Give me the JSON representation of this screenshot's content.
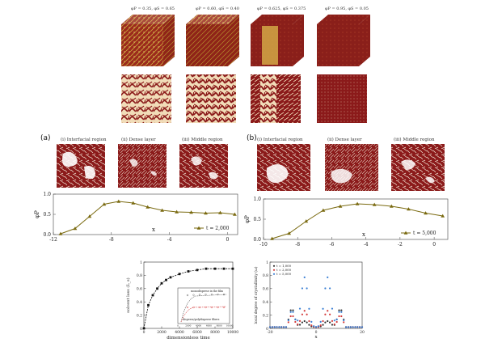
{
  "top_panels": [
    {
      "label": "φP = 0.35, φS = 0.65"
    },
    {
      "label": "φP = 0.60, φS = 0.40"
    },
    {
      "label": "φP = 0.625, φS = 0.375"
    },
    {
      "label": "φP = 0.95, φS = 0.05"
    }
  ],
  "panel_a": {
    "tag": "(a)",
    "regions": [
      "(i) Interfacial region",
      "(ii) Dense layer",
      "(iii) Middle region"
    ],
    "legend": "t = 2,000",
    "xlabel": "x",
    "ylabel": "φP"
  },
  "panel_b": {
    "tag": "(b)",
    "regions": [
      "(i) Interfacial region",
      "(ii) Dense layer",
      "(iii) Middle region"
    ],
    "legend": "t = 5,000",
    "xlabel": "x",
    "ylabel": "φP"
  },
  "colors": {
    "polymer": "#8b1a1a",
    "solvent": "#f1dcb8",
    "curve": "#7a6a10"
  },
  "chart_data": [
    {
      "type": "line",
      "name": "panel (a) profile",
      "x": [
        -11.5,
        -10.5,
        -9.5,
        -8.5,
        -7.5,
        -6.5,
        -5.5,
        -4.5,
        -3.5,
        -2.5,
        -1.5,
        -0.5,
        0.5
      ],
      "y": [
        0.02,
        0.15,
        0.45,
        0.75,
        0.82,
        0.78,
        0.68,
        0.6,
        0.56,
        0.55,
        0.53,
        0.54,
        0.5
      ],
      "xlim": [
        -12,
        0.7
      ],
      "ylim": [
        0,
        1.0
      ],
      "xticks": [
        "-12",
        "-8",
        "-4",
        "0"
      ],
      "yticks": [
        "0.0",
        "0.5",
        "1.0"
      ]
    },
    {
      "type": "line",
      "name": "panel (b) profile",
      "x": [
        -9.5,
        -8.5,
        -7.5,
        -6.5,
        -5.5,
        -4.5,
        -3.5,
        -2.5,
        -1.5,
        -0.5,
        0.5
      ],
      "y": [
        0.02,
        0.15,
        0.45,
        0.72,
        0.82,
        0.88,
        0.86,
        0.82,
        0.75,
        0.65,
        0.58
      ],
      "xlim": [
        -10,
        0.8
      ],
      "ylim": [
        0,
        1.0
      ],
      "xticks": [
        "-10",
        "-8",
        "-6",
        "-4",
        "-2",
        "0"
      ],
      "yticks": [
        "0.0",
        "0.5",
        "1.0"
      ]
    },
    {
      "type": "line",
      "name": "solvent loss",
      "xlabel": "dimensionless time",
      "ylabel": "solvent loss (L_s)",
      "x": [
        0,
        500,
        1000,
        1500,
        2000,
        2500,
        3000,
        4000,
        5000,
        6000,
        7000,
        8000,
        9000,
        10000
      ],
      "y": [
        0.0,
        0.35,
        0.5,
        0.6,
        0.68,
        0.73,
        0.77,
        0.82,
        0.86,
        0.88,
        0.9,
        0.9,
        0.9,
        0.9
      ],
      "xlim": [
        0,
        10000
      ],
      "ylim": [
        0,
        1.0
      ],
      "xticks": [
        "0",
        "2000",
        "4000",
        "6000",
        "8000",
        "10000"
      ],
      "yticks": [
        "0",
        "0.2",
        "0.4",
        "0.6",
        "0.8",
        "1"
      ],
      "inset": {
        "labels": [
          "monodisperse in the film",
          "disperse/polydisperse fibers"
        ],
        "xticks": [
          "0",
          "2000",
          "4000",
          "6000",
          "8000",
          "10000"
        ]
      }
    },
    {
      "type": "scatter",
      "name": "local degree of crystallinity",
      "xlabel": "x",
      "ylabel": "local degree of crystallinity (ω)",
      "legend": [
        "t = 1,000",
        "t = 2,000",
        "t = 5,000"
      ],
      "xlim": [
        -20,
        20
      ],
      "ylim": [
        0,
        1.0
      ],
      "xticks": [
        "-20",
        "0",
        "20"
      ],
      "yticks": [
        "0",
        "0.2",
        "0.4",
        "0.6",
        "0.8",
        "1"
      ]
    }
  ]
}
